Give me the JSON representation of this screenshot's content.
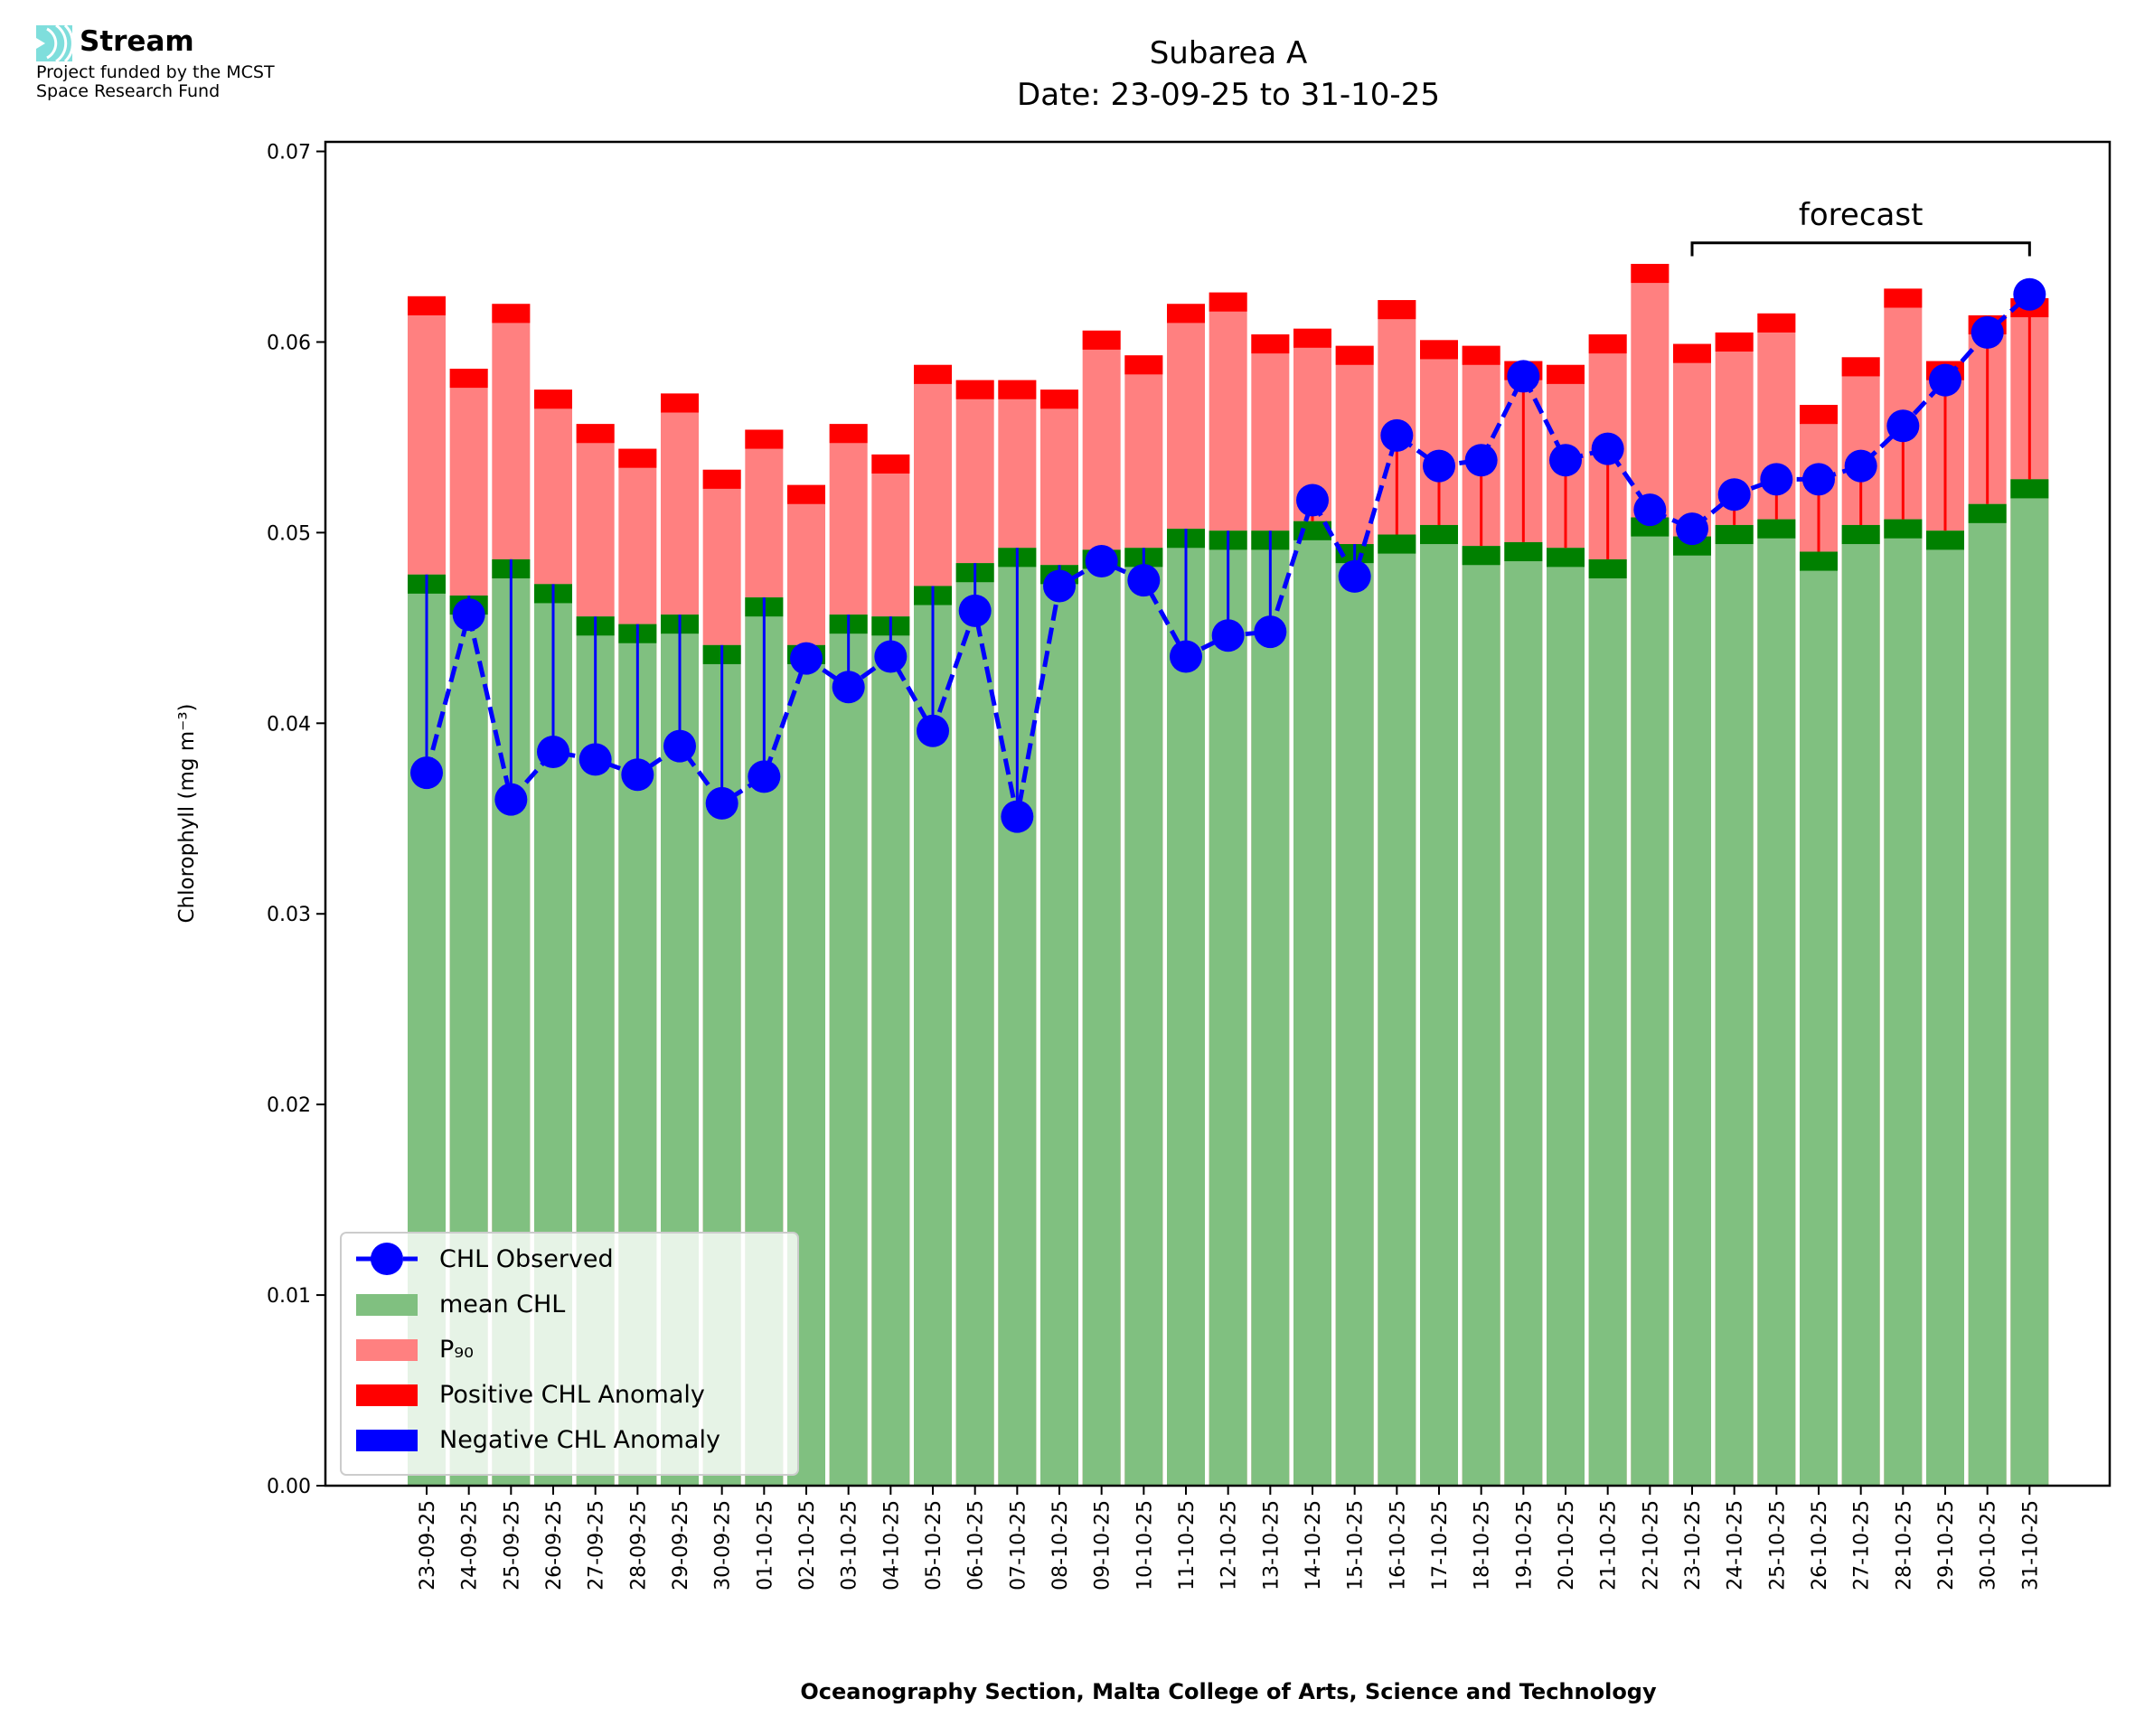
{
  "logo": {
    "name": "Stream",
    "funding_line1": "Project funded by the MCST",
    "funding_line2": "Space Research Fund",
    "color": "#7fdedc"
  },
  "chart_data": {
    "type": "bar",
    "title": "Subarea A",
    "subtitle": "Date: 23-09-25 to 31-10-25",
    "xlabel": "Oceanography Section, Malta College of Arts, Science and Technology",
    "ylabel": "Chlorophyll (mg m⁻³)",
    "ylim": [
      0,
      0.0705
    ],
    "yticks": [
      "0.00",
      "0.01",
      "0.02",
      "0.03",
      "0.04",
      "0.05",
      "0.06",
      "0.07"
    ],
    "grid": false,
    "legend_position": "bottom-left",
    "annotation": {
      "text": "forecast",
      "from": "23-10-25",
      "to": "31-10-25"
    },
    "categories": [
      "23-09-25",
      "24-09-25",
      "25-09-25",
      "26-09-25",
      "27-09-25",
      "28-09-25",
      "29-09-25",
      "30-09-25",
      "01-10-25",
      "02-10-25",
      "03-10-25",
      "04-10-25",
      "05-10-25",
      "06-10-25",
      "07-10-25",
      "08-10-25",
      "09-10-25",
      "10-10-25",
      "11-10-25",
      "12-10-25",
      "13-10-25",
      "14-10-25",
      "15-10-25",
      "16-10-25",
      "17-10-25",
      "18-10-25",
      "19-10-25",
      "20-10-25",
      "21-10-25",
      "22-10-25",
      "23-10-25",
      "24-10-25",
      "25-10-25",
      "26-10-25",
      "27-10-25",
      "28-10-25",
      "29-10-25",
      "30-10-25",
      "31-10-25"
    ],
    "series": [
      {
        "name": "CHL Observed",
        "color": "#0000ff",
        "values": [
          0.0374,
          0.0457,
          0.036,
          0.0385,
          0.0381,
          0.0373,
          0.0388,
          0.0358,
          0.0372,
          0.0434,
          0.0419,
          0.0435,
          0.0396,
          0.0459,
          0.0351,
          0.0472,
          0.0485,
          0.0475,
          0.0435,
          0.0446,
          0.0448,
          0.0517,
          0.0477,
          0.0551,
          0.0535,
          0.0538,
          0.0582,
          0.0538,
          0.0544,
          0.0512,
          0.0502,
          0.052,
          0.0528,
          0.0528,
          0.0535,
          0.0556,
          0.058,
          0.0605,
          0.0625
        ]
      },
      {
        "name": "mean CHL",
        "color": "#80c080",
        "values": [
          0.0478,
          0.0467,
          0.0486,
          0.0473,
          0.0456,
          0.0452,
          0.0457,
          0.0441,
          0.0466,
          0.0441,
          0.0457,
          0.0456,
          0.0472,
          0.0484,
          0.0492,
          0.0483,
          0.0491,
          0.0492,
          0.0502,
          0.0501,
          0.0501,
          0.0506,
          0.0494,
          0.0499,
          0.0504,
          0.0493,
          0.0495,
          0.0492,
          0.0486,
          0.0508,
          0.0498,
          0.0504,
          0.0507,
          0.049,
          0.0504,
          0.0507,
          0.0501,
          0.0515,
          0.0528
        ]
      },
      {
        "name": "P₉₀",
        "color": "#ff8080",
        "values": [
          0.0624,
          0.0586,
          0.062,
          0.0575,
          0.0557,
          0.0544,
          0.0573,
          0.0533,
          0.0554,
          0.0525,
          0.0557,
          0.0541,
          0.0588,
          0.058,
          0.058,
          0.0575,
          0.0606,
          0.0593,
          0.062,
          0.0626,
          0.0604,
          0.0607,
          0.0598,
          0.0622,
          0.0601,
          0.0598,
          0.059,
          0.0588,
          0.0604,
          0.0641,
          0.0599,
          0.0605,
          0.0615,
          0.0567,
          0.0592,
          0.0628,
          0.059,
          0.0614,
          0.0623
        ]
      }
    ],
    "legend": [
      {
        "label": "CHL Observed",
        "color": "#0000ff",
        "kind": "line-marker"
      },
      {
        "label": "mean CHL",
        "color": "#80c080",
        "kind": "patch"
      },
      {
        "label": "P₉₀",
        "color": "#ff8080",
        "kind": "patch"
      },
      {
        "label": "Positive CHL Anomaly",
        "color": "#ff0000",
        "kind": "patch"
      },
      {
        "label": "Negative CHL Anomaly",
        "color": "#0000ff",
        "kind": "patch"
      }
    ],
    "band_colors": {
      "mean_band": "#008000",
      "p90_band": "#ff0000"
    }
  }
}
